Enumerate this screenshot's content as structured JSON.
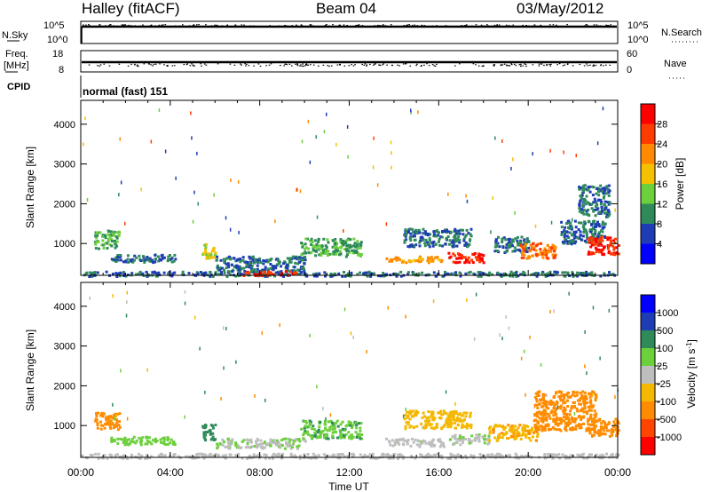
{
  "header": {
    "title": "Halley (fitACF)",
    "beam": "Beam 04",
    "date": "03/May/2012"
  },
  "panels": {
    "nsky_label": "N.Sky",
    "nsearch_label": "N.Search",
    "freq_label": "Freq.",
    "freq_unit": "[MHz]",
    "nave_label": "Nave",
    "cpid_label": "CPID",
    "cpid_value": "normal (fast) 151",
    "noise_ticks": [
      "10^5",
      "10^0"
    ],
    "freq_ticks": [
      "18",
      "8"
    ],
    "nave_ticks": [
      "60",
      "0"
    ]
  },
  "axes": {
    "xlabel": "Time UT",
    "xticks": [
      "00:00",
      "04:00",
      "08:00",
      "12:00",
      "16:00",
      "20:00",
      "00:00"
    ],
    "ylabel": "Slant Range [km]",
    "yticks": [
      1000,
      2000,
      3000,
      4000
    ]
  },
  "colors": {
    "power": [
      "#0000ff",
      "#1e3cb4",
      "#2f8a5a",
      "#6ccf3c",
      "#f5c000",
      "#ff8a00",
      "#ff3c00",
      "#ff0000"
    ],
    "velocity": [
      "#ff0000",
      "#ff4500",
      "#ff8c00",
      "#f5b800",
      "#bebebe",
      "#6ccf3c",
      "#2f8a5a",
      "#1e3cb4",
      "#0000ff"
    ]
  },
  "chart_data": [
    {
      "type": "heatmap",
      "name": "power",
      "xlabel": "Time UT",
      "ylabel": "Slant Range [km]",
      "xlim": [
        0,
        24
      ],
      "ylim": [
        200,
        4600
      ],
      "colorbar": {
        "label": "Power [dB]",
        "ticks": [
          4,
          8,
          12,
          16,
          20,
          24,
          28
        ],
        "range": [
          0,
          32
        ]
      },
      "echo_bands": [
        {
          "t": [
            0.0,
            24.0
          ],
          "r": [
            200,
            320
          ],
          "level": 8
        },
        {
          "t": [
            0.6,
            1.7
          ],
          "r": [
            900,
            1350
          ],
          "level": 12
        },
        {
          "t": [
            1.3,
            4.2
          ],
          "r": [
            550,
            750
          ],
          "level": 8
        },
        {
          "t": [
            5.4,
            6.0
          ],
          "r": [
            650,
            1050
          ],
          "level": 16
        },
        {
          "t": [
            6.0,
            10.0
          ],
          "r": [
            300,
            700
          ],
          "level": 8
        },
        {
          "t": [
            7.2,
            9.6
          ],
          "r": [
            220,
            330
          ],
          "level": 28
        },
        {
          "t": [
            9.8,
            12.5
          ],
          "r": [
            700,
            1150
          ],
          "level": 12
        },
        {
          "t": [
            13.6,
            16.2
          ],
          "r": [
            550,
            700
          ],
          "level": 20
        },
        {
          "t": [
            14.4,
            17.4
          ],
          "r": [
            950,
            1400
          ],
          "level": 8
        },
        {
          "t": [
            16.4,
            18.0
          ],
          "r": [
            550,
            800
          ],
          "level": 28
        },
        {
          "t": [
            18.4,
            20.0
          ],
          "r": [
            800,
            1200
          ],
          "level": 8
        },
        {
          "t": [
            19.6,
            21.2
          ],
          "r": [
            650,
            1050
          ],
          "level": 24
        },
        {
          "t": [
            21.4,
            23.4
          ],
          "r": [
            1000,
            1600
          ],
          "level": 8
        },
        {
          "t": [
            22.6,
            24.0
          ],
          "r": [
            750,
            1200
          ],
          "level": 28
        },
        {
          "t": [
            22.2,
            23.6
          ],
          "r": [
            1700,
            2500
          ],
          "level": 8
        }
      ]
    },
    {
      "type": "heatmap",
      "name": "velocity",
      "xlabel": "Time UT",
      "ylabel": "Slant Range [km]",
      "xlim": [
        0,
        24
      ],
      "ylim": [
        200,
        4600
      ],
      "colorbar": {
        "label": "Velocity [m s^-1]",
        "ticks": [
          -1000,
          -500,
          -100,
          -25,
          25,
          100,
          500,
          1000
        ]
      },
      "echo_bands": [
        {
          "t": [
            0.0,
            24.0
          ],
          "r": [
            200,
            320
          ],
          "velocity": 0
        },
        {
          "t": [
            0.6,
            1.7
          ],
          "r": [
            900,
            1350
          ],
          "velocity": -150
        },
        {
          "t": [
            1.3,
            4.2
          ],
          "r": [
            550,
            750
          ],
          "velocity": 60
        },
        {
          "t": [
            5.4,
            6.0
          ],
          "r": [
            650,
            1050
          ],
          "velocity": 300
        },
        {
          "t": [
            6.0,
            10.0
          ],
          "r": [
            450,
            700
          ],
          "velocity": 20
        },
        {
          "t": [
            9.8,
            12.5
          ],
          "r": [
            700,
            1150
          ],
          "velocity": 80
        },
        {
          "t": [
            13.6,
            16.2
          ],
          "r": [
            500,
            700
          ],
          "velocity": 10
        },
        {
          "t": [
            14.4,
            17.4
          ],
          "r": [
            950,
            1400
          ],
          "velocity": -60
        },
        {
          "t": [
            16.4,
            18.2
          ],
          "r": [
            550,
            800
          ],
          "velocity": 20
        },
        {
          "t": [
            18.2,
            20.4
          ],
          "r": [
            650,
            1050
          ],
          "velocity": -80
        },
        {
          "t": [
            20.2,
            23.0
          ],
          "r": [
            900,
            1900
          ],
          "velocity": -200
        },
        {
          "t": [
            22.6,
            24.0
          ],
          "r": [
            750,
            1200
          ],
          "velocity": -250
        }
      ]
    }
  ]
}
